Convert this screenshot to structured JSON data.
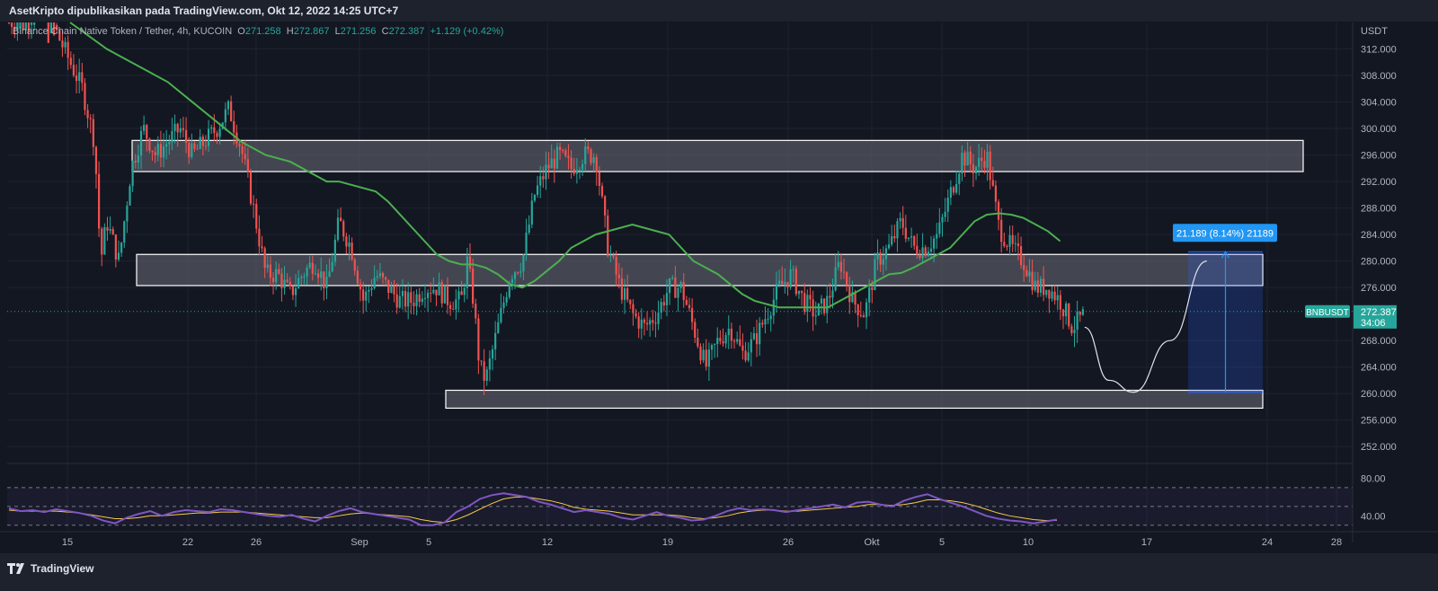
{
  "header": {
    "published_by": "AsetKripto dipublikasikan pada TradingView.com, Okt 12, 2022 14:25 UTC+7"
  },
  "legend": {
    "symbol_desc": "Binance Chain Native Token / Tether, 4h, KUCOIN",
    "open_label": "O",
    "open": "271.258",
    "high_label": "H",
    "high": "272.867",
    "low_label": "L",
    "low": "271.256",
    "close_label": "C",
    "close": "272.387",
    "change": "+1.129 (+0.42%)"
  },
  "price_axis": {
    "currency": "USDT",
    "ticks": [
      "312.000",
      "308.000",
      "304.000",
      "300.000",
      "296.000",
      "292.000",
      "288.000",
      "284.000",
      "280.000",
      "276.000",
      "268.000",
      "264.000",
      "260.000",
      "256.000",
      "252.000"
    ],
    "current_symbol": "BNBUSDT",
    "current_price": "272.387",
    "countdown": "34:06"
  },
  "time_axis": {
    "ticks": [
      "15",
      "22",
      "26",
      "Sep",
      "5",
      "12",
      "19",
      "26",
      "Okt",
      "5",
      "10",
      "17",
      "24",
      "28"
    ]
  },
  "rsi_axis": {
    "ticks": [
      "80.00",
      "40.00"
    ]
  },
  "measure": {
    "label": "21.189 (8.14%) 21189"
  },
  "footer": {
    "brand": "TradingView"
  },
  "colors": {
    "up": "#26a69a",
    "down": "#ef5350",
    "ma": "#4caf50",
    "rsi": "#7e57c2",
    "rsi_signal": "#f7c948",
    "zone_fill": "#5d606b",
    "measure": "#2962ff",
    "background": "#131722"
  },
  "chart_data": {
    "type": "candlestick",
    "timeframe": "4h",
    "y_range": [
      250,
      316
    ],
    "price_zones": [
      {
        "low": 293.5,
        "high": 298.2
      },
      {
        "low": 276.3,
        "high": 281.0
      },
      {
        "low": 257.8,
        "high": 260.5
      }
    ],
    "ma_curve": [
      [
        2,
        318
      ],
      [
        5,
        316
      ],
      [
        8,
        312
      ],
      [
        11,
        309
      ],
      [
        13,
        307
      ],
      [
        15,
        304
      ],
      [
        17,
        301
      ],
      [
        19,
        298
      ],
      [
        21,
        296
      ],
      [
        23,
        295
      ],
      [
        25,
        293
      ],
      [
        26,
        292
      ],
      [
        27,
        292
      ],
      [
        29,
        291
      ],
      [
        30,
        290.5
      ],
      [
        31,
        289
      ],
      [
        32,
        287
      ],
      [
        33,
        285
      ],
      [
        34,
        283
      ],
      [
        35,
        281
      ],
      [
        36,
        280
      ],
      [
        37,
        279.5
      ],
      [
        38,
        279.5
      ],
      [
        39,
        279
      ],
      [
        40,
        278
      ],
      [
        41,
        276.5
      ],
      [
        42,
        276
      ],
      [
        43,
        277
      ],
      [
        44,
        278.5
      ],
      [
        45,
        280
      ],
      [
        46,
        282
      ],
      [
        48,
        284
      ],
      [
        50,
        285
      ],
      [
        51,
        285.5
      ],
      [
        52,
        285
      ],
      [
        54,
        284
      ],
      [
        55,
        282
      ],
      [
        56,
        280
      ],
      [
        57,
        279
      ],
      [
        58,
        278
      ],
      [
        59,
        276.5
      ],
      [
        60,
        275
      ],
      [
        61,
        274
      ],
      [
        62,
        273.5
      ],
      [
        63,
        273
      ],
      [
        64,
        273
      ],
      [
        65,
        273
      ],
      [
        66,
        273
      ],
      [
        67,
        273
      ],
      [
        68,
        274
      ],
      [
        69,
        275
      ],
      [
        70,
        276
      ],
      [
        71,
        277
      ],
      [
        72,
        278
      ],
      [
        73,
        278.2
      ],
      [
        74,
        279
      ],
      [
        75,
        280
      ],
      [
        76,
        281
      ],
      [
        77,
        282
      ],
      [
        78,
        284
      ],
      [
        79,
        286
      ],
      [
        80,
        287
      ],
      [
        81,
        287.2
      ],
      [
        82,
        287
      ],
      [
        83,
        286.5
      ],
      [
        84,
        285.5
      ],
      [
        85,
        284.5
      ],
      [
        86,
        283
      ]
    ],
    "candle_path": [
      [
        0,
        316
      ],
      [
        3,
        318
      ],
      [
        5,
        310
      ],
      [
        6,
        306
      ],
      [
        7,
        298
      ],
      [
        7.5,
        280
      ],
      [
        8,
        286
      ],
      [
        9,
        280
      ],
      [
        10,
        294
      ],
      [
        11,
        300
      ],
      [
        12,
        296
      ],
      [
        13,
        298
      ],
      [
        14,
        300
      ],
      [
        15,
        296
      ],
      [
        16,
        298
      ],
      [
        17,
        300
      ],
      [
        18,
        303
      ],
      [
        19,
        297
      ],
      [
        20,
        288
      ],
      [
        21,
        278
      ],
      [
        22,
        278
      ],
      [
        23,
        275
      ],
      [
        24,
        278
      ],
      [
        25,
        280
      ],
      [
        26,
        276
      ],
      [
        27,
        286
      ],
      [
        28,
        282
      ],
      [
        29,
        274
      ],
      [
        30,
        278
      ],
      [
        31,
        276
      ],
      [
        32,
        274
      ],
      [
        33,
        274
      ],
      [
        34,
        276
      ],
      [
        35,
        276
      ],
      [
        36,
        274
      ],
      [
        37,
        274
      ],
      [
        37.5,
        280
      ],
      [
        38,
        274
      ],
      [
        38.5,
        264
      ],
      [
        39,
        262
      ],
      [
        40,
        270
      ],
      [
        41,
        278
      ],
      [
        42,
        280
      ],
      [
        43,
        290
      ],
      [
        44,
        294
      ],
      [
        45,
        296
      ],
      [
        46,
        294
      ],
      [
        47,
        296
      ],
      [
        48,
        296
      ],
      [
        49,
        282
      ],
      [
        50,
        276
      ],
      [
        51,
        272
      ],
      [
        52,
        270
      ],
      [
        53,
        272
      ],
      [
        54,
        276
      ],
      [
        55,
        276
      ],
      [
        56,
        270
      ],
      [
        57,
        264
      ],
      [
        58,
        268
      ],
      [
        59,
        270
      ],
      [
        60,
        266
      ],
      [
        61,
        268
      ],
      [
        62,
        272
      ],
      [
        63,
        276
      ],
      [
        64,
        278
      ],
      [
        65,
        274
      ],
      [
        66,
        272
      ],
      [
        67,
        274
      ],
      [
        68,
        280
      ],
      [
        69,
        274
      ],
      [
        70,
        272
      ],
      [
        71,
        280
      ],
      [
        72,
        282
      ],
      [
        73,
        286
      ],
      [
        74,
        282
      ],
      [
        75,
        282
      ],
      [
        76,
        284
      ],
      [
        77,
        290
      ],
      [
        78,
        296
      ],
      [
        79,
        294
      ],
      [
        80,
        296
      ],
      [
        81,
        285
      ],
      [
        82,
        282
      ],
      [
        83,
        280
      ],
      [
        84,
        276
      ],
      [
        85,
        276
      ],
      [
        86,
        274
      ],
      [
        87,
        270
      ],
      [
        88,
        272
      ]
    ],
    "measure_range": {
      "low": 260.2,
      "high": 281.4,
      "change": 21.189,
      "percent": 8.14
    },
    "projection_curve": [
      [
        88,
        270
      ],
      [
        90,
        262
      ],
      [
        92,
        260.2
      ],
      [
        95,
        268
      ],
      [
        98,
        280
      ]
    ],
    "rsi": {
      "y_range": [
        25,
        90
      ],
      "levels": [
        70,
        50,
        30
      ],
      "axis_ticks": [
        80,
        40
      ],
      "values": [
        48,
        45,
        46,
        44,
        47,
        45,
        43,
        40,
        35,
        32,
        38,
        42,
        45,
        40,
        44,
        46,
        45,
        44,
        47,
        46,
        44,
        42,
        40,
        39,
        41,
        37,
        34,
        40,
        45,
        48,
        44,
        42,
        40,
        38,
        36,
        30,
        30,
        33,
        44,
        50,
        58,
        62,
        64,
        62,
        60,
        55,
        52,
        48,
        44,
        46,
        44,
        42,
        38,
        36,
        40,
        44,
        40,
        38,
        35,
        36,
        40,
        45,
        48,
        46,
        47,
        46,
        44,
        46,
        48,
        50,
        52,
        49,
        54,
        55,
        52,
        50,
        56,
        60,
        63,
        58,
        54,
        50,
        45,
        40,
        37,
        35,
        34,
        32,
        34,
        36
      ],
      "signal": [
        46,
        45,
        45,
        45,
        45,
        44,
        43,
        41,
        39,
        37,
        37,
        38,
        40,
        40,
        41,
        42,
        43,
        43,
        44,
        44,
        44,
        43,
        42,
        41,
        40,
        39,
        38,
        38,
        40,
        42,
        43,
        42,
        41,
        40,
        39,
        36,
        34,
        33,
        36,
        41,
        47,
        53,
        58,
        60,
        60,
        58,
        56,
        53,
        49,
        47,
        46,
        45,
        43,
        41,
        41,
        41,
        41,
        40,
        38,
        37,
        38,
        40,
        43,
        45,
        46,
        46,
        45,
        45,
        46,
        47,
        48,
        49,
        50,
        52,
        52,
        51,
        52,
        54,
        57,
        57,
        56,
        54,
        51,
        47,
        43,
        40,
        38,
        36,
        35,
        35
      ]
    }
  }
}
